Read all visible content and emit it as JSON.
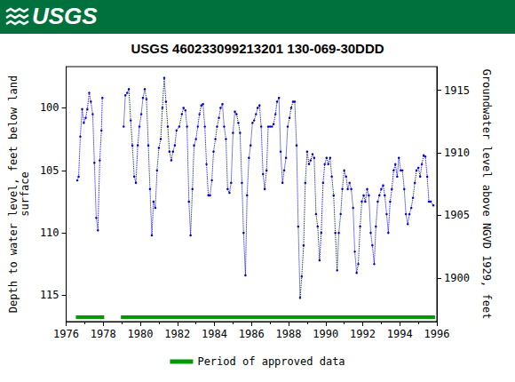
{
  "header": "USGS",
  "chart_data": {
    "type": "line",
    "title": "USGS 460233099213201 130-069-30DDD",
    "y_label": "Depth to water level, feet below land\nsurface",
    "y2_label": "Groundwater level above NGVD 1929, feet",
    "x": [
      1976.6,
      1976.67,
      1976.76,
      1976.86,
      1976.95,
      1977.05,
      1977.14,
      1977.24,
      1977.33,
      1977.43,
      1977.52,
      1977.62,
      1977.71,
      1977.81,
      1977.9,
      1977.95,
      1978.5,
      1979.1,
      1979.19,
      1979.29,
      1979.38,
      1979.48,
      1979.57,
      1979.67,
      1979.76,
      1979.86,
      1979.95,
      1980.05,
      1980.14,
      1980.24,
      1980.33,
      1980.43,
      1980.52,
      1980.62,
      1980.71,
      1980.81,
      1980.9,
      1981.0,
      1981.1,
      1981.19,
      1981.29,
      1981.38,
      1981.48,
      1981.57,
      1981.67,
      1981.76,
      1981.86,
      1981.95,
      1982.1,
      1982.24,
      1982.33,
      1982.43,
      1982.52,
      1982.62,
      1982.71,
      1982.81,
      1982.9,
      1983.0,
      1983.1,
      1983.19,
      1983.29,
      1983.38,
      1983.48,
      1983.57,
      1983.67,
      1983.76,
      1983.86,
      1983.95,
      1984.05,
      1984.14,
      1984.24,
      1984.33,
      1984.43,
      1984.52,
      1984.62,
      1984.71,
      1984.81,
      1984.9,
      1985.0,
      1985.1,
      1985.19,
      1985.29,
      1985.38,
      1985.48,
      1985.57,
      1985.67,
      1985.76,
      1985.86,
      1985.95,
      1986.05,
      1986.14,
      1986.24,
      1986.33,
      1986.43,
      1986.52,
      1986.62,
      1986.71,
      1986.81,
      1986.9,
      1987.0,
      1987.1,
      1987.19,
      1987.29,
      1987.38,
      1987.48,
      1987.57,
      1987.67,
      1987.76,
      1987.86,
      1987.95,
      1988.05,
      1988.14,
      1988.24,
      1988.33,
      1988.43,
      1988.52,
      1988.62,
      1988.71,
      1988.81,
      1988.9,
      1989.0,
      1989.1,
      1989.19,
      1989.29,
      1989.38,
      1989.48,
      1989.57,
      1989.67,
      1989.76,
      1989.86,
      1989.95,
      1990.05,
      1990.14,
      1990.24,
      1990.33,
      1990.43,
      1990.52,
      1990.62,
      1990.71,
      1990.81,
      1990.9,
      1991.0,
      1991.1,
      1991.19,
      1991.29,
      1991.38,
      1991.48,
      1991.57,
      1991.67,
      1991.76,
      1991.86,
      1991.95,
      1992.05,
      1992.14,
      1992.24,
      1992.33,
      1992.43,
      1992.52,
      1992.62,
      1992.71,
      1992.81,
      1992.9,
      1993.0,
      1993.1,
      1993.19,
      1993.29,
      1993.38,
      1993.48,
      1993.57,
      1993.67,
      1993.76,
      1993.86,
      1993.95,
      1994.05,
      1994.14,
      1994.24,
      1994.33,
      1994.43,
      1994.52,
      1994.62,
      1994.71,
      1994.81,
      1994.9,
      1995.0,
      1995.1,
      1995.19,
      1995.29,
      1995.38,
      1995.48,
      1995.57,
      1995.67,
      1995.81
    ],
    "values": [
      105.8,
      105.5,
      102.3,
      100.1,
      101.2,
      100.8,
      100.1,
      98.8,
      99.5,
      100.5,
      104.4,
      108.8,
      109.8,
      104.2,
      101.8,
      99.2,
      null,
      101.5,
      99.0,
      98.8,
      98.5,
      101.0,
      103.0,
      105.5,
      106.0,
      103.0,
      101.5,
      100.5,
      99.2,
      98.5,
      99.3,
      103.0,
      106.5,
      110.2,
      107.5,
      108.0,
      105.0,
      103.2,
      102.5,
      100.0,
      97.6,
      99.5,
      101.5,
      103.5,
      104.2,
      103.5,
      103.0,
      101.8,
      101.5,
      100.5,
      100.0,
      100.2,
      101.5,
      107.5,
      110.2,
      106.5,
      103.0,
      102.5,
      101.5,
      100.5,
      99.8,
      99.7,
      101.5,
      104.5,
      107.0,
      107.0,
      105.8,
      103.5,
      102.5,
      101.5,
      100.8,
      100.0,
      99.7,
      101.5,
      102.5,
      106.5,
      106.8,
      106.0,
      102.0,
      100.3,
      100.5,
      101.2,
      102.0,
      106.0,
      110.0,
      113.4,
      107.0,
      104.0,
      103.0,
      101.2,
      101.0,
      100.5,
      100.0,
      99.8,
      101.5,
      105.3,
      106.5,
      105.0,
      101.5,
      101.5,
      101.5,
      101.3,
      100.5,
      99.5,
      99.2,
      103.5,
      106.0,
      105.0,
      104.0,
      101.5,
      100.8,
      100.0,
      99.5,
      99.5,
      103.0,
      109.5,
      115.2,
      113.5,
      111.0,
      106.0,
      103.5,
      104.5,
      104.2,
      103.7,
      104.0,
      108.5,
      109.5,
      112.2,
      110.0,
      106.0,
      104.5,
      104.0,
      104.5,
      104.0,
      105.5,
      107.0,
      110.0,
      113.0,
      110.0,
      108.5,
      106.5,
      105.0,
      105.5,
      106.5,
      106.0,
      106.5,
      108.0,
      111.5,
      113.2,
      112.5,
      109.5,
      107.5,
      107.0,
      107.5,
      106.5,
      107.0,
      110.0,
      111.0,
      112.5,
      109.5,
      107.5,
      107.0,
      106.5,
      106.2,
      107.0,
      108.5,
      110.0,
      107.5,
      106.5,
      105.0,
      104.5,
      105.5,
      104.0,
      105.0,
      105.0,
      106.5,
      108.5,
      109.3,
      108.5,
      108.0,
      107.2,
      106.0,
      105.0,
      104.8,
      105.5,
      104.5,
      103.8,
      103.9,
      105.5,
      107.5,
      107.5,
      107.8
    ],
    "color": "#0000cc",
    "marker": "circle",
    "line_style": "dotted",
    "xlim": [
      1976,
      1996
    ],
    "xticks": [
      1976,
      1978,
      1980,
      1982,
      1984,
      1986,
      1988,
      1990,
      1992,
      1994,
      1996
    ],
    "ylim": [
      96.7,
      117.1
    ],
    "yticks": [
      100,
      105,
      110,
      115
    ],
    "y2lim": [
      1896.5,
      1916.9
    ],
    "y2ticks": [
      1900,
      1905,
      1910,
      1915
    ],
    "grid": false,
    "legend": "bottom",
    "approved_data": {
      "name": "Period of approved data",
      "color": "#009900",
      "periods": [
        [
          1976.52,
          1978.05
        ],
        [
          1978.95,
          1995.9
        ]
      ]
    }
  }
}
